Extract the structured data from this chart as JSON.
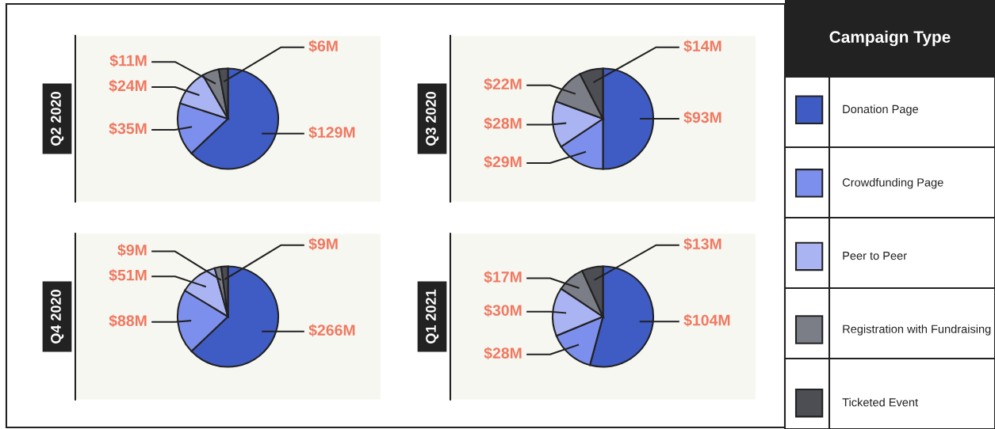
{
  "chart_data": [
    {
      "type": "pie",
      "title": "Q2 2020",
      "legend": "right",
      "legend_title": "Campaign Type",
      "categories": [
        "Donation Page",
        "Crowdfunding Page",
        "Peer to Peer",
        "Registration with Fundraising",
        "Ticketed Event"
      ],
      "values": [
        129,
        35,
        24,
        11,
        6
      ],
      "value_labels": [
        "$129M",
        "$35M",
        "$24M",
        "$11M",
        "$6M"
      ],
      "colors": [
        "#3f5bc4",
        "#7d8fec",
        "#aab4f3",
        "#7b7e86",
        "#4c4e54"
      ]
    },
    {
      "type": "pie",
      "title": "Q3 2020",
      "values": [
        93,
        29,
        28,
        22,
        14
      ],
      "value_labels": [
        "$93M",
        "$29M",
        "$28M",
        "$22M",
        "$14M"
      ],
      "colors": [
        "#3f5bc4",
        "#7d8fec",
        "#aab4f3",
        "#7b7e86",
        "#4c4e54"
      ]
    },
    {
      "type": "pie",
      "title": "Q4 2020",
      "values": [
        266,
        88,
        51,
        9,
        9
      ],
      "value_labels": [
        "$266M",
        "$88M",
        "$51M",
        "$9M",
        "$9M"
      ],
      "colors": [
        "#3f5bc4",
        "#7d8fec",
        "#aab4f3",
        "#7b7e86",
        "#4c4e54"
      ]
    },
    {
      "type": "pie",
      "title": "Q1 2021",
      "values": [
        104,
        28,
        30,
        17,
        13
      ],
      "value_labels": [
        "$104M",
        "$28M",
        "$30M",
        "$17M",
        "$13M"
      ],
      "colors": [
        "#3f5bc4",
        "#7d8fec",
        "#aab4f3",
        "#7b7e86",
        "#4c4e54"
      ]
    }
  ]
}
